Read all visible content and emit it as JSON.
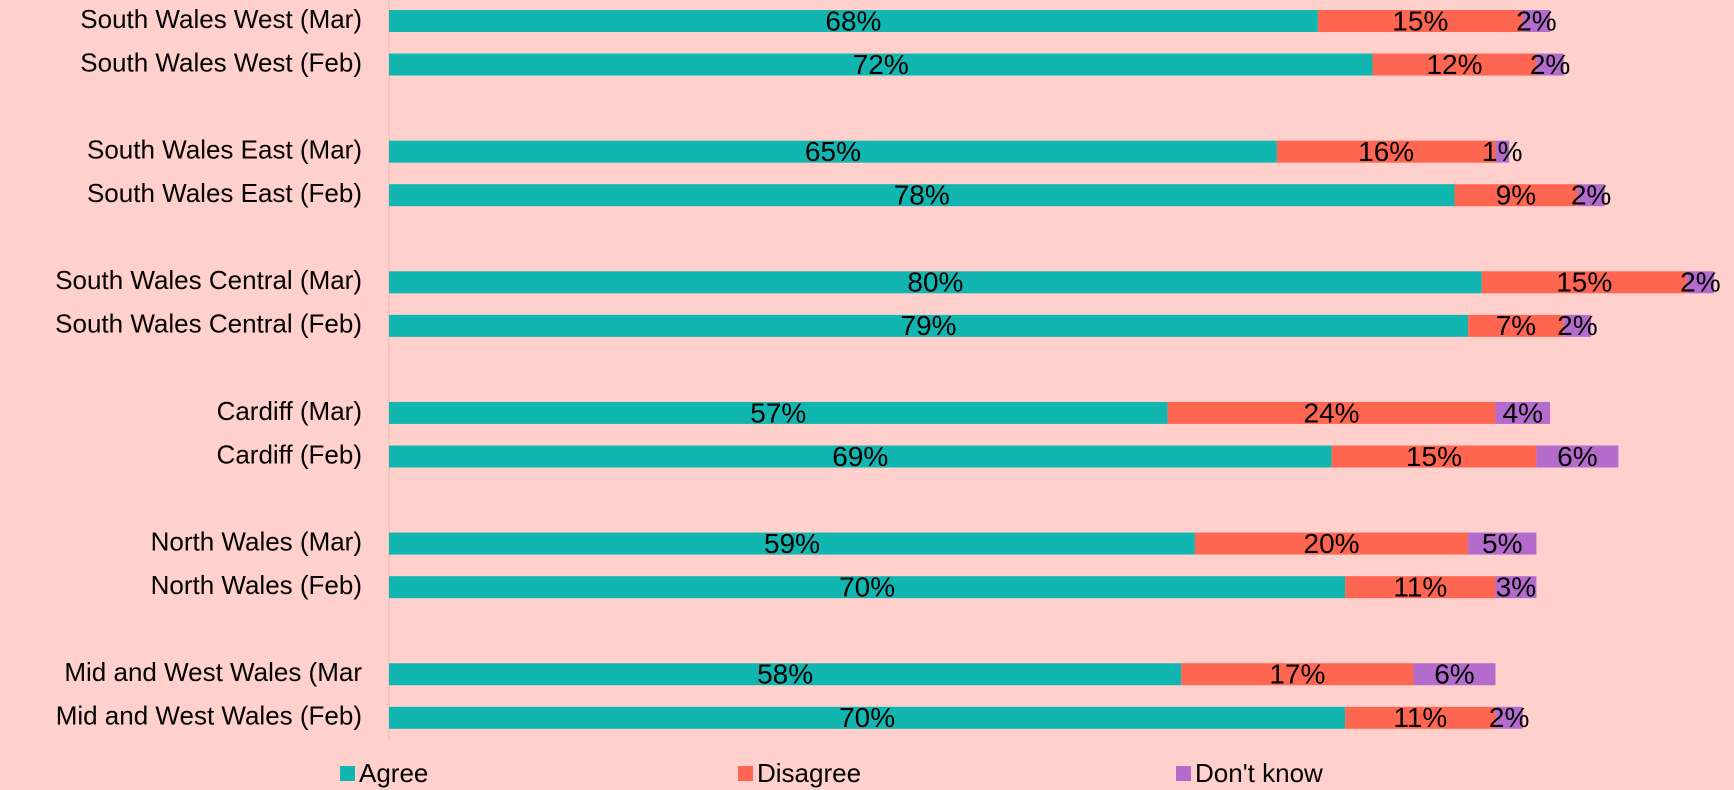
{
  "chart_data": {
    "type": "stacked-barh",
    "categories": [
      "South Wales West (Mar)",
      "South Wales West (Feb)",
      null,
      "South Wales East (Mar)",
      "South Wales East (Feb)",
      null,
      "South Wales Central (Mar)",
      "South Wales Central (Feb)",
      null,
      "Cardiff (Mar)",
      "Cardiff (Feb)",
      null,
      "North Wales (Mar)",
      "North Wales (Feb)",
      null,
      "Mid and West Wales (Mar",
      "Mid and West Wales (Feb)"
    ],
    "series": [
      {
        "name": "Agree",
        "color": "#12b6b0",
        "values": [
          68,
          72,
          null,
          65,
          78,
          null,
          80,
          79,
          null,
          57,
          69,
          null,
          59,
          70,
          null,
          58,
          70
        ],
        "value_labels": [
          "68%",
          "72%",
          null,
          "65%",
          "78%",
          null,
          "80%",
          "79%",
          null,
          "57%",
          "69%",
          null,
          "59%",
          "70%",
          null,
          "58%",
          "70%"
        ]
      },
      {
        "name": "Disagree",
        "color": "#ff6652",
        "values": [
          15,
          12,
          null,
          16,
          9,
          null,
          15,
          7,
          null,
          24,
          15,
          null,
          20,
          11,
          null,
          17,
          11
        ],
        "value_labels": [
          "15%",
          "12%",
          null,
          "16%",
          "9%",
          null,
          "15%",
          "7%",
          null,
          "24%",
          "15%",
          null,
          "20%",
          "11%",
          null,
          "17%",
          "11%"
        ]
      },
      {
        "name": "Don't know",
        "color": "#b46ccc",
        "values": [
          2,
          2,
          null,
          1,
          2,
          null,
          2,
          2,
          null,
          4,
          6,
          null,
          5,
          3,
          null,
          6,
          2
        ],
        "value_labels": [
          "2%",
          "2%",
          null,
          "1%",
          "2%",
          null,
          "2%",
          "2%",
          null,
          "4%",
          "6%",
          null,
          "5%",
          "3%",
          null,
          "6%",
          "2%"
        ]
      }
    ],
    "xlim": [
      0,
      100
    ],
    "legend": "bottom"
  }
}
